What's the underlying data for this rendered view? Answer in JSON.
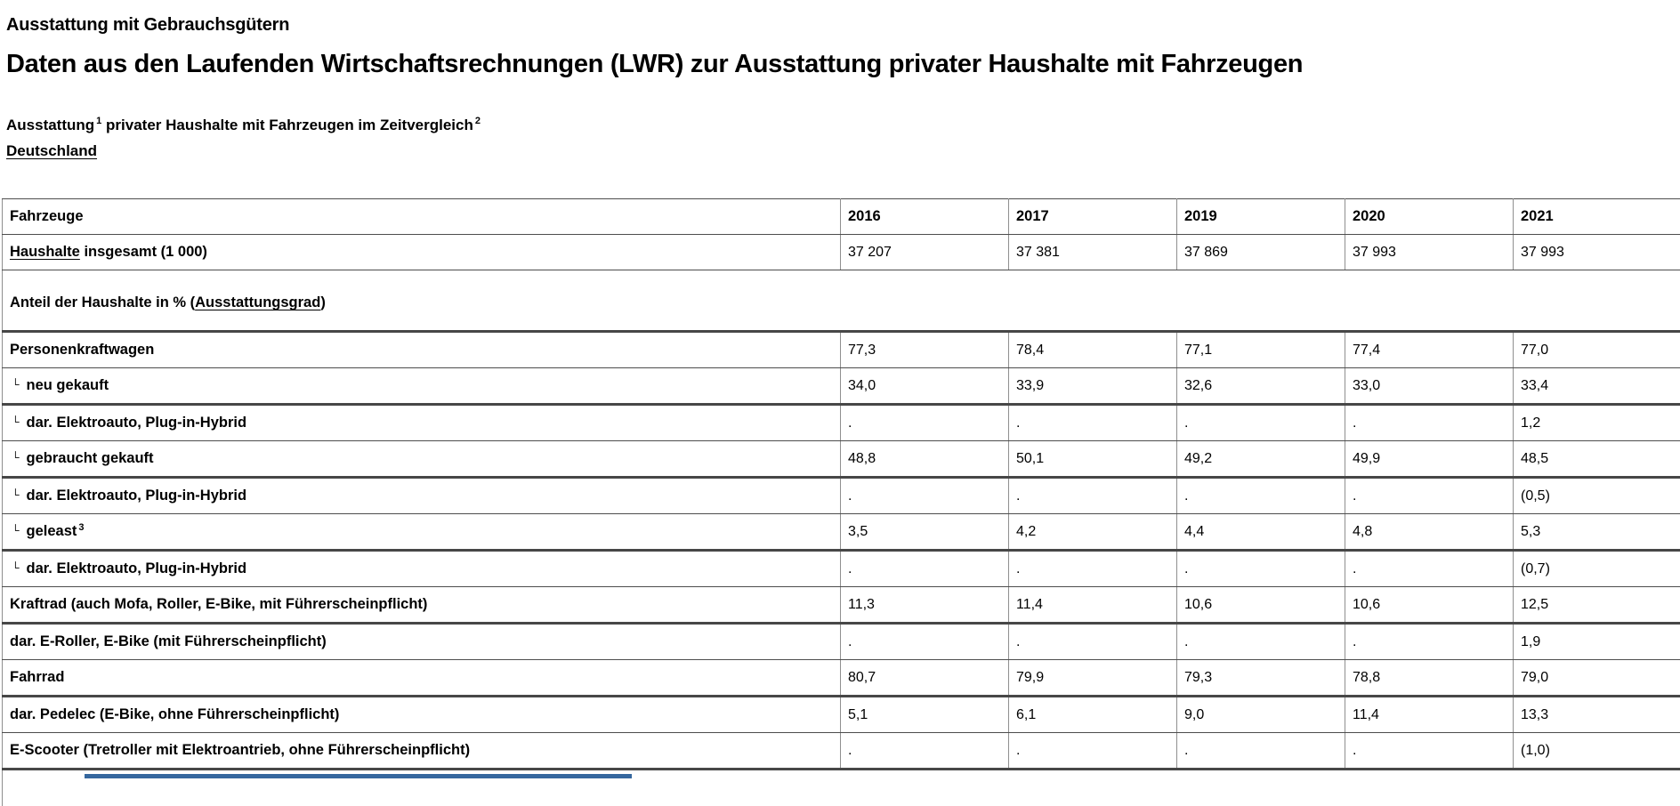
{
  "page": {
    "kicker": "Ausstattung mit Gebrauchsgütern",
    "title": "Daten aus den Laufenden Wirtschaftsrechnungen (LWR) zur Ausstattung privater Haushalte mit Fahrzeugen",
    "subtitle": {
      "part1": "Ausstattung",
      "sup1": "1",
      "part2": " privater Haushalte mit Fahrzeugen im Zeitvergleich",
      "sup2": "2"
    },
    "region_link": "Deutschland"
  },
  "table": {
    "indent_marker": "└",
    "missing_symbol": ".",
    "header": {
      "label": "Fahrzeuge",
      "years": [
        "2016",
        "2017",
        "2019",
        "2020",
        "2021"
      ]
    },
    "households_row": {
      "label_link": "Haushalte",
      "label_rest": " insgesamt (1 000)",
      "values": [
        "37 207",
        "37 381",
        "37 869",
        "37 993",
        "37 993"
      ]
    },
    "section_row": {
      "pre": "Anteil der Haushalte in % (",
      "link": "Ausstattungsgrad",
      "post": ")"
    },
    "rows": [
      {
        "label": "Personenkraftwagen",
        "sub": false,
        "sup": "",
        "values": [
          "77,3",
          "78,4",
          "77,1",
          "77,4",
          "77,0"
        ],
        "thick_bottom": false
      },
      {
        "label": "neu gekauft",
        "sub": true,
        "sup": "",
        "values": [
          "34,0",
          "33,9",
          "32,6",
          "33,0",
          "33,4"
        ],
        "thick_bottom": true
      },
      {
        "label": "dar. Elektroauto, Plug-in-Hybrid",
        "sub": true,
        "sup": "",
        "values": [
          ".",
          ".",
          ".",
          ".",
          "1,2"
        ],
        "thick_bottom": false
      },
      {
        "label": "gebraucht gekauft",
        "sub": true,
        "sup": "",
        "values": [
          "48,8",
          "50,1",
          "49,2",
          "49,9",
          "48,5"
        ],
        "thick_bottom": true
      },
      {
        "label": "dar. Elektroauto, Plug-in-Hybrid",
        "sub": true,
        "sup": "",
        "values": [
          ".",
          ".",
          ".",
          ".",
          "(0,5)"
        ],
        "thick_bottom": false
      },
      {
        "label": "geleast",
        "sub": true,
        "sup": "3",
        "values": [
          "3,5",
          "4,2",
          "4,4",
          "4,8",
          "5,3"
        ],
        "thick_bottom": true
      },
      {
        "label": "dar. Elektroauto, Plug-in-Hybrid",
        "sub": true,
        "sup": "",
        "values": [
          ".",
          ".",
          ".",
          ".",
          "(0,7)"
        ],
        "thick_bottom": false
      },
      {
        "label": "Kraftrad (auch Mofa, Roller, E-Bike, mit Führerscheinpflicht)",
        "sub": false,
        "sup": "",
        "values": [
          "11,3",
          "11,4",
          "10,6",
          "10,6",
          "12,5"
        ],
        "thick_bottom": true
      },
      {
        "label": "dar. E-Roller, E-Bike (mit Führerscheinpflicht)",
        "sub": false,
        "sup": "",
        "values": [
          ".",
          ".",
          ".",
          ".",
          "1,9"
        ],
        "thick_bottom": false
      },
      {
        "label": "Fahrrad",
        "sub": false,
        "sup": "",
        "values": [
          "80,7",
          "79,9",
          "79,3",
          "78,8",
          "79,0"
        ],
        "thick_bottom": true
      },
      {
        "label": "dar. Pedelec (E-Bike, ohne Führerscheinpflicht)",
        "sub": false,
        "sup": "",
        "values": [
          "5,1",
          "6,1",
          "9,0",
          "11,4",
          "13,3"
        ],
        "thick_bottom": false
      },
      {
        "label": "E-Scooter (Tretroller mit Elektroantrieb, ohne Führerscheinpflicht)",
        "sub": false,
        "sup": "",
        "values": [
          ".",
          ".",
          ".",
          ".",
          "(1,0)"
        ],
        "thick_bottom": true
      }
    ]
  },
  "colors": {
    "partial_bar": "#35679e",
    "border_dark": "#4d4d4d",
    "border_light": "#8f8f8f"
  },
  "chart_data": {
    "type": "table",
    "title": "Ausstattung privater Haushalte mit Fahrzeugen im Zeitvergleich, Deutschland",
    "columns": [
      "Fahrzeuge",
      "2016",
      "2017",
      "2019",
      "2020",
      "2021"
    ],
    "rows": [
      [
        "Haushalte insgesamt (1 000)",
        "37 207",
        "37 381",
        "37 869",
        "37 993",
        "37 993"
      ],
      [
        "Anteil der Haushalte in % (Ausstattungsgrad)",
        "",
        "",
        "",
        "",
        ""
      ],
      [
        "Personenkraftwagen",
        "77,3",
        "78,4",
        "77,1",
        "77,4",
        "77,0"
      ],
      [
        "neu gekauft",
        "34,0",
        "33,9",
        "32,6",
        "33,0",
        "33,4"
      ],
      [
        "dar. Elektroauto, Plug-in-Hybrid",
        ".",
        ".",
        ".",
        ".",
        "1,2"
      ],
      [
        "gebraucht gekauft",
        "48,8",
        "50,1",
        "49,2",
        "49,9",
        "48,5"
      ],
      [
        "dar. Elektroauto, Plug-in-Hybrid",
        ".",
        ".",
        ".",
        ".",
        "(0,5)"
      ],
      [
        "geleast",
        "3,5",
        "4,2",
        "4,4",
        "4,8",
        "5,3"
      ],
      [
        "dar. Elektroauto, Plug-in-Hybrid",
        ".",
        ".",
        ".",
        ".",
        "(0,7)"
      ],
      [
        "Kraftrad (auch Mofa, Roller, E-Bike, mit Führerscheinpflicht)",
        "11,3",
        "11,4",
        "10,6",
        "10,6",
        "12,5"
      ],
      [
        "dar. E-Roller, E-Bike (mit Führerscheinpflicht)",
        ".",
        ".",
        ".",
        ".",
        "1,9"
      ],
      [
        "Fahrrad",
        "80,7",
        "79,9",
        "79,3",
        "78,8",
        "79,0"
      ],
      [
        "dar. Pedelec (E-Bike, ohne Führerscheinpflicht)",
        "5,1",
        "6,1",
        "9,0",
        "11,4",
        "13,3"
      ],
      [
        "E-Scooter (Tretroller mit Elektroantrieb, ohne Führerscheinpflicht)",
        ".",
        ".",
        ".",
        ".",
        "(1,0)"
      ]
    ]
  }
}
